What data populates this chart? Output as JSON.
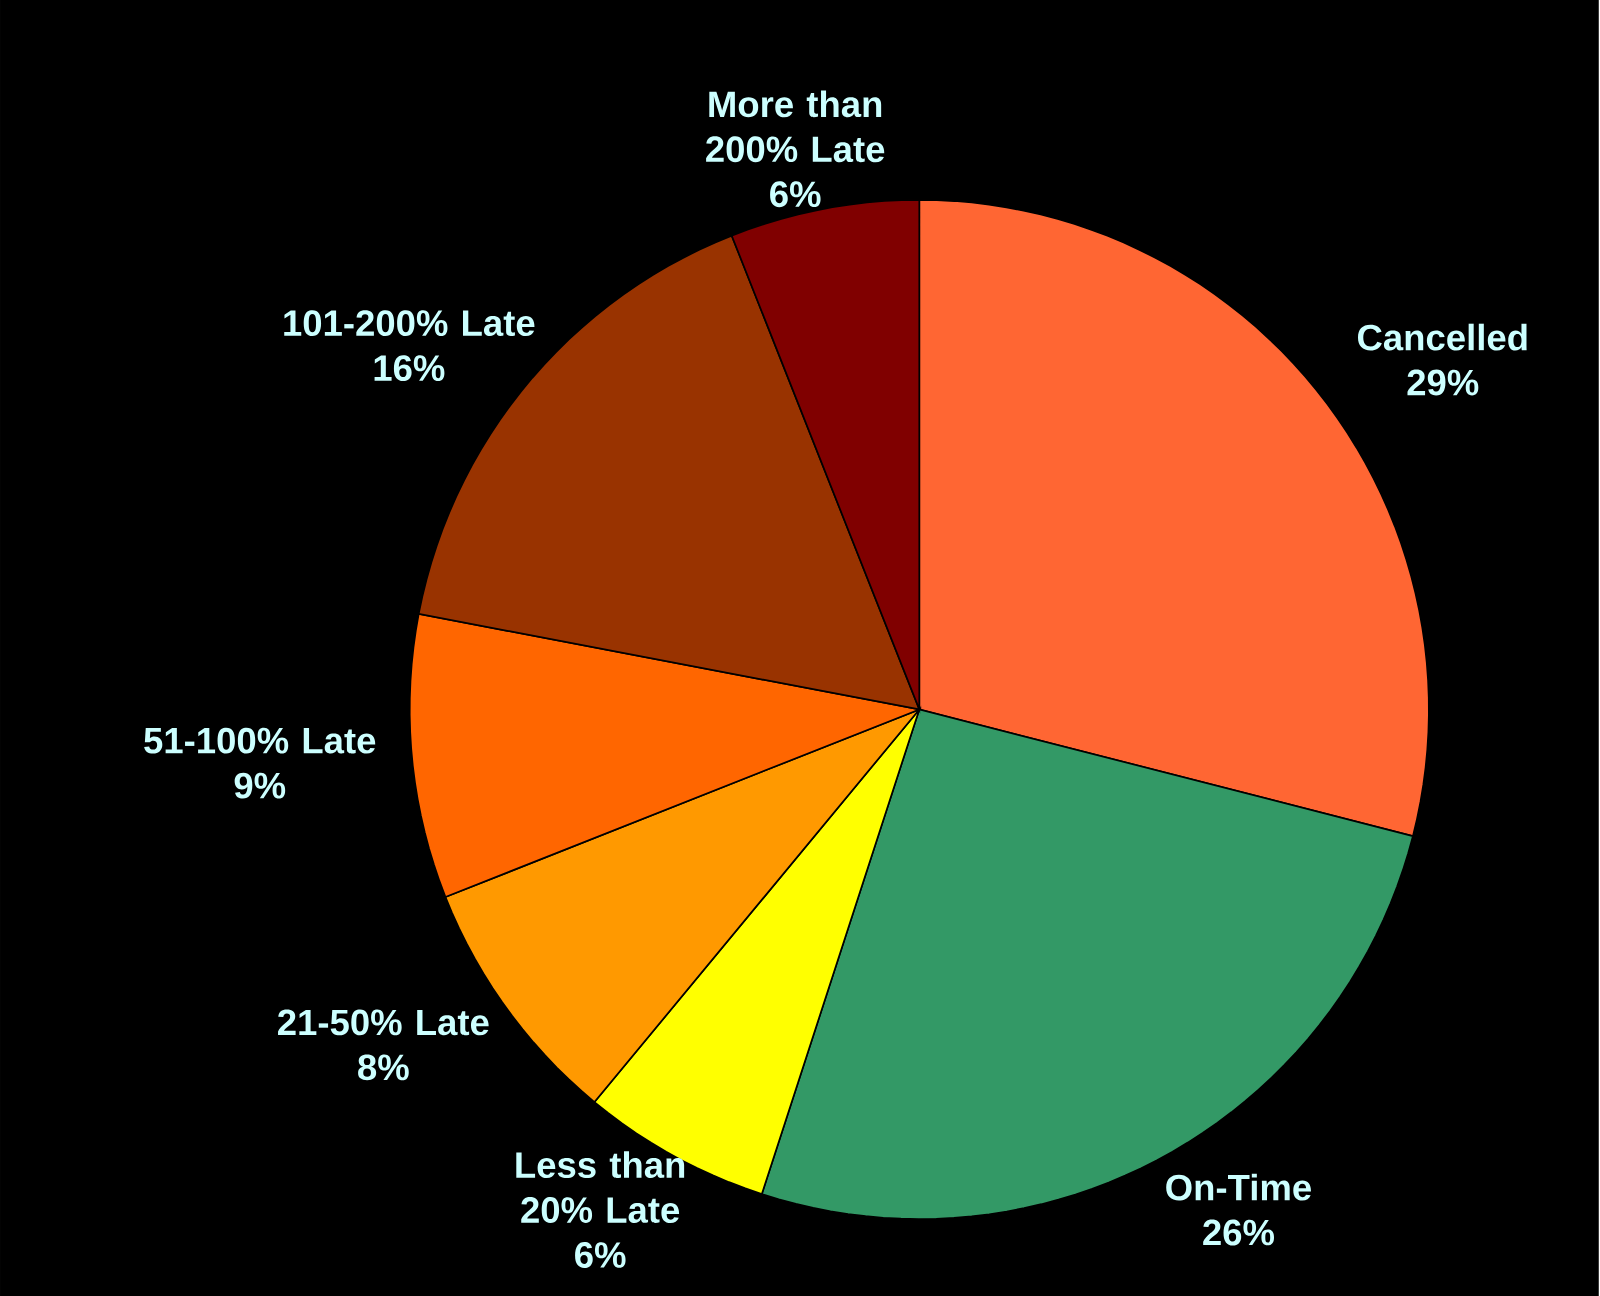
{
  "chart_data": {
    "type": "pie",
    "categories": [
      "Cancelled",
      "On-Time",
      "Less than 20% Late",
      "21-50% Late",
      "51-100% Late",
      "101-200% Late",
      "More than 200% Late"
    ],
    "values": [
      29,
      26,
      6,
      8,
      9,
      16,
      6
    ],
    "value_labels": [
      "29%",
      "26%",
      "6%",
      "8%",
      "9%",
      "16%",
      "6%"
    ],
    "colors": [
      "#ff6633",
      "#339966",
      "#ffff00",
      "#ff9900",
      "#ff6600",
      "#993300",
      "#800000"
    ]
  }
}
